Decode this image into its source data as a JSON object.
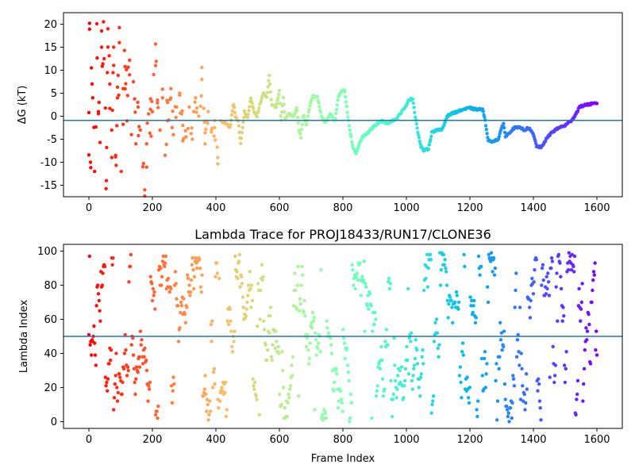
{
  "chart_data": [
    {
      "type": "scatter",
      "title": "",
      "xlabel": "",
      "ylabel": "ΔG (kT)",
      "xlim": [
        -80,
        1680
      ],
      "ylim": [
        -17.5,
        22.5
      ],
      "xticks": [
        0,
        200,
        400,
        600,
        800,
        1000,
        1200,
        1400,
        1600
      ],
      "yticks": [
        -15,
        -10,
        -5,
        0,
        5,
        10,
        15,
        20
      ],
      "hline": {
        "y": -0.9,
        "color": "#1f77b4"
      },
      "colormap": "rainbow (red at frame 0 to violet at frame 1600, reversed)",
      "grid": false,
      "keypoints": [
        [
          0,
          0.8
        ],
        [
          2,
          20.2
        ],
        [
          5,
          -10
        ],
        [
          8,
          10.5
        ],
        [
          12,
          4
        ],
        [
          18,
          -12
        ],
        [
          25,
          20.1
        ],
        [
          30,
          1
        ],
        [
          35,
          -5.7
        ],
        [
          40,
          15
        ],
        [
          48,
          12.5
        ],
        [
          55,
          -14
        ],
        [
          60,
          19
        ],
        [
          66,
          7
        ],
        [
          72,
          -3
        ],
        [
          78,
          15
        ],
        [
          84,
          -8.5
        ],
        [
          90,
          4
        ],
        [
          96,
          16
        ],
        [
          102,
          -12
        ],
        [
          108,
          6
        ],
        [
          114,
          10.8
        ],
        [
          120,
          -1
        ],
        [
          128,
          9
        ],
        [
          134,
          -4
        ],
        [
          140,
          7.5
        ],
        [
          148,
          -6
        ],
        [
          155,
          2
        ],
        [
          162,
          -3
        ],
        [
          170,
          -11
        ],
        [
          176,
          -16
        ],
        [
          182,
          -6
        ],
        [
          188,
          0.5
        ],
        [
          194,
          1.5
        ],
        [
          200,
          1
        ],
        [
          210,
          11
        ],
        [
          216,
          3.5
        ],
        [
          224,
          -3
        ],
        [
          232,
          4
        ],
        [
          240,
          -8.5
        ],
        [
          248,
          3
        ],
        [
          258,
          6
        ],
        [
          266,
          -4
        ],
        [
          276,
          2
        ],
        [
          286,
          5
        ],
        [
          296,
          -2
        ],
        [
          306,
          -4.5
        ],
        [
          316,
          2
        ],
        [
          326,
          -5
        ],
        [
          336,
          4
        ],
        [
          346,
          0
        ],
        [
          356,
          8
        ],
        [
          366,
          -6
        ],
        [
          376,
          1
        ],
        [
          386,
          -3
        ],
        [
          396,
          -2.5
        ],
        [
          406,
          -9
        ],
        [
          416,
          -1
        ],
        [
          430,
          -1.5
        ],
        [
          445,
          -2.5
        ],
        [
          455,
          3
        ],
        [
          462,
          0
        ],
        [
          470,
          -1
        ],
        [
          478,
          -6
        ],
        [
          490,
          1
        ],
        [
          500,
          -0.5
        ],
        [
          510,
          4
        ],
        [
          520,
          1
        ],
        [
          530,
          0
        ],
        [
          540,
          3
        ],
        [
          550,
          5
        ],
        [
          560,
          4
        ],
        [
          568,
          9
        ],
        [
          575,
          2.5
        ],
        [
          590,
          2
        ],
        [
          600,
          5.5
        ],
        [
          605,
          -1.5
        ],
        [
          612,
          4
        ],
        [
          618,
          -0.5
        ],
        [
          630,
          0.5
        ],
        [
          645,
          0
        ],
        [
          655,
          2
        ],
        [
          662,
          -3
        ],
        [
          668,
          -4.5
        ],
        [
          675,
          0.5
        ],
        [
          685,
          -2
        ],
        [
          695,
          2
        ],
        [
          705,
          4.3
        ],
        [
          720,
          4.2
        ],
        [
          732,
          0
        ],
        [
          745,
          -1.5
        ],
        [
          760,
          0.5
        ],
        [
          775,
          -1
        ],
        [
          785,
          4
        ],
        [
          795,
          5.5
        ],
        [
          805,
          5.8
        ],
        [
          812,
          2
        ],
        [
          822,
          -3
        ],
        [
          832,
          -7
        ],
        [
          842,
          -8
        ],
        [
          852,
          -6
        ],
        [
          862,
          -4.5
        ],
        [
          880,
          -3.5
        ],
        [
          900,
          -2
        ],
        [
          920,
          -1
        ],
        [
          940,
          -1.5
        ],
        [
          955,
          -1
        ],
        [
          970,
          -0.5
        ],
        [
          985,
          1
        ],
        [
          998,
          2
        ],
        [
          1005,
          3.5
        ],
        [
          1020,
          3.8
        ],
        [
          1028,
          0
        ],
        [
          1035,
          -3
        ],
        [
          1045,
          -6.5
        ],
        [
          1055,
          -7.5
        ],
        [
          1070,
          -7
        ],
        [
          1080,
          -3.5
        ],
        [
          1095,
          -3
        ],
        [
          1110,
          -3
        ],
        [
          1118,
          -2
        ],
        [
          1128,
          0
        ],
        [
          1140,
          0.5
        ],
        [
          1160,
          1
        ],
        [
          1180,
          1.5
        ],
        [
          1200,
          1.8
        ],
        [
          1215,
          1.5
        ],
        [
          1240,
          1.5
        ],
        [
          1248,
          -1
        ],
        [
          1258,
          -5.3
        ],
        [
          1268,
          -5.5
        ],
        [
          1290,
          -5
        ],
        [
          1300,
          -2.5
        ],
        [
          1306,
          -1.5
        ],
        [
          1312,
          -4.5
        ],
        [
          1325,
          -3.5
        ],
        [
          1340,
          -2.5
        ],
        [
          1360,
          -2.5
        ],
        [
          1372,
          -3
        ],
        [
          1385,
          -2.5
        ],
        [
          1400,
          -4
        ],
        [
          1410,
          -6.5
        ],
        [
          1425,
          -6.8
        ],
        [
          1440,
          -5
        ],
        [
          1458,
          -3.5
        ],
        [
          1480,
          -2.5
        ],
        [
          1500,
          -2
        ],
        [
          1518,
          -1
        ],
        [
          1530,
          0
        ],
        [
          1545,
          2
        ],
        [
          1565,
          2.5
        ],
        [
          1600,
          2.8
        ]
      ]
    },
    {
      "type": "scatter",
      "title": "Lambda Trace for PROJ18433/RUN17/CLONE36",
      "xlabel": "Frame Index",
      "ylabel": "Lambda Index",
      "xlim": [
        -80,
        1680
      ],
      "ylim": [
        -4,
        104
      ],
      "xticks": [
        0,
        200,
        400,
        600,
        800,
        1000,
        1200,
        1400,
        1600
      ],
      "yticks": [
        0,
        20,
        40,
        60,
        80,
        100
      ],
      "hline": {
        "y": 50,
        "color": "#1f77b4"
      },
      "colormap": "rainbow (red at frame 0 to violet at frame 1600, reversed)",
      "grid": false,
      "point_count": 800,
      "value_range": [
        0,
        99
      ],
      "x_range": [
        0,
        1600
      ]
    }
  ]
}
